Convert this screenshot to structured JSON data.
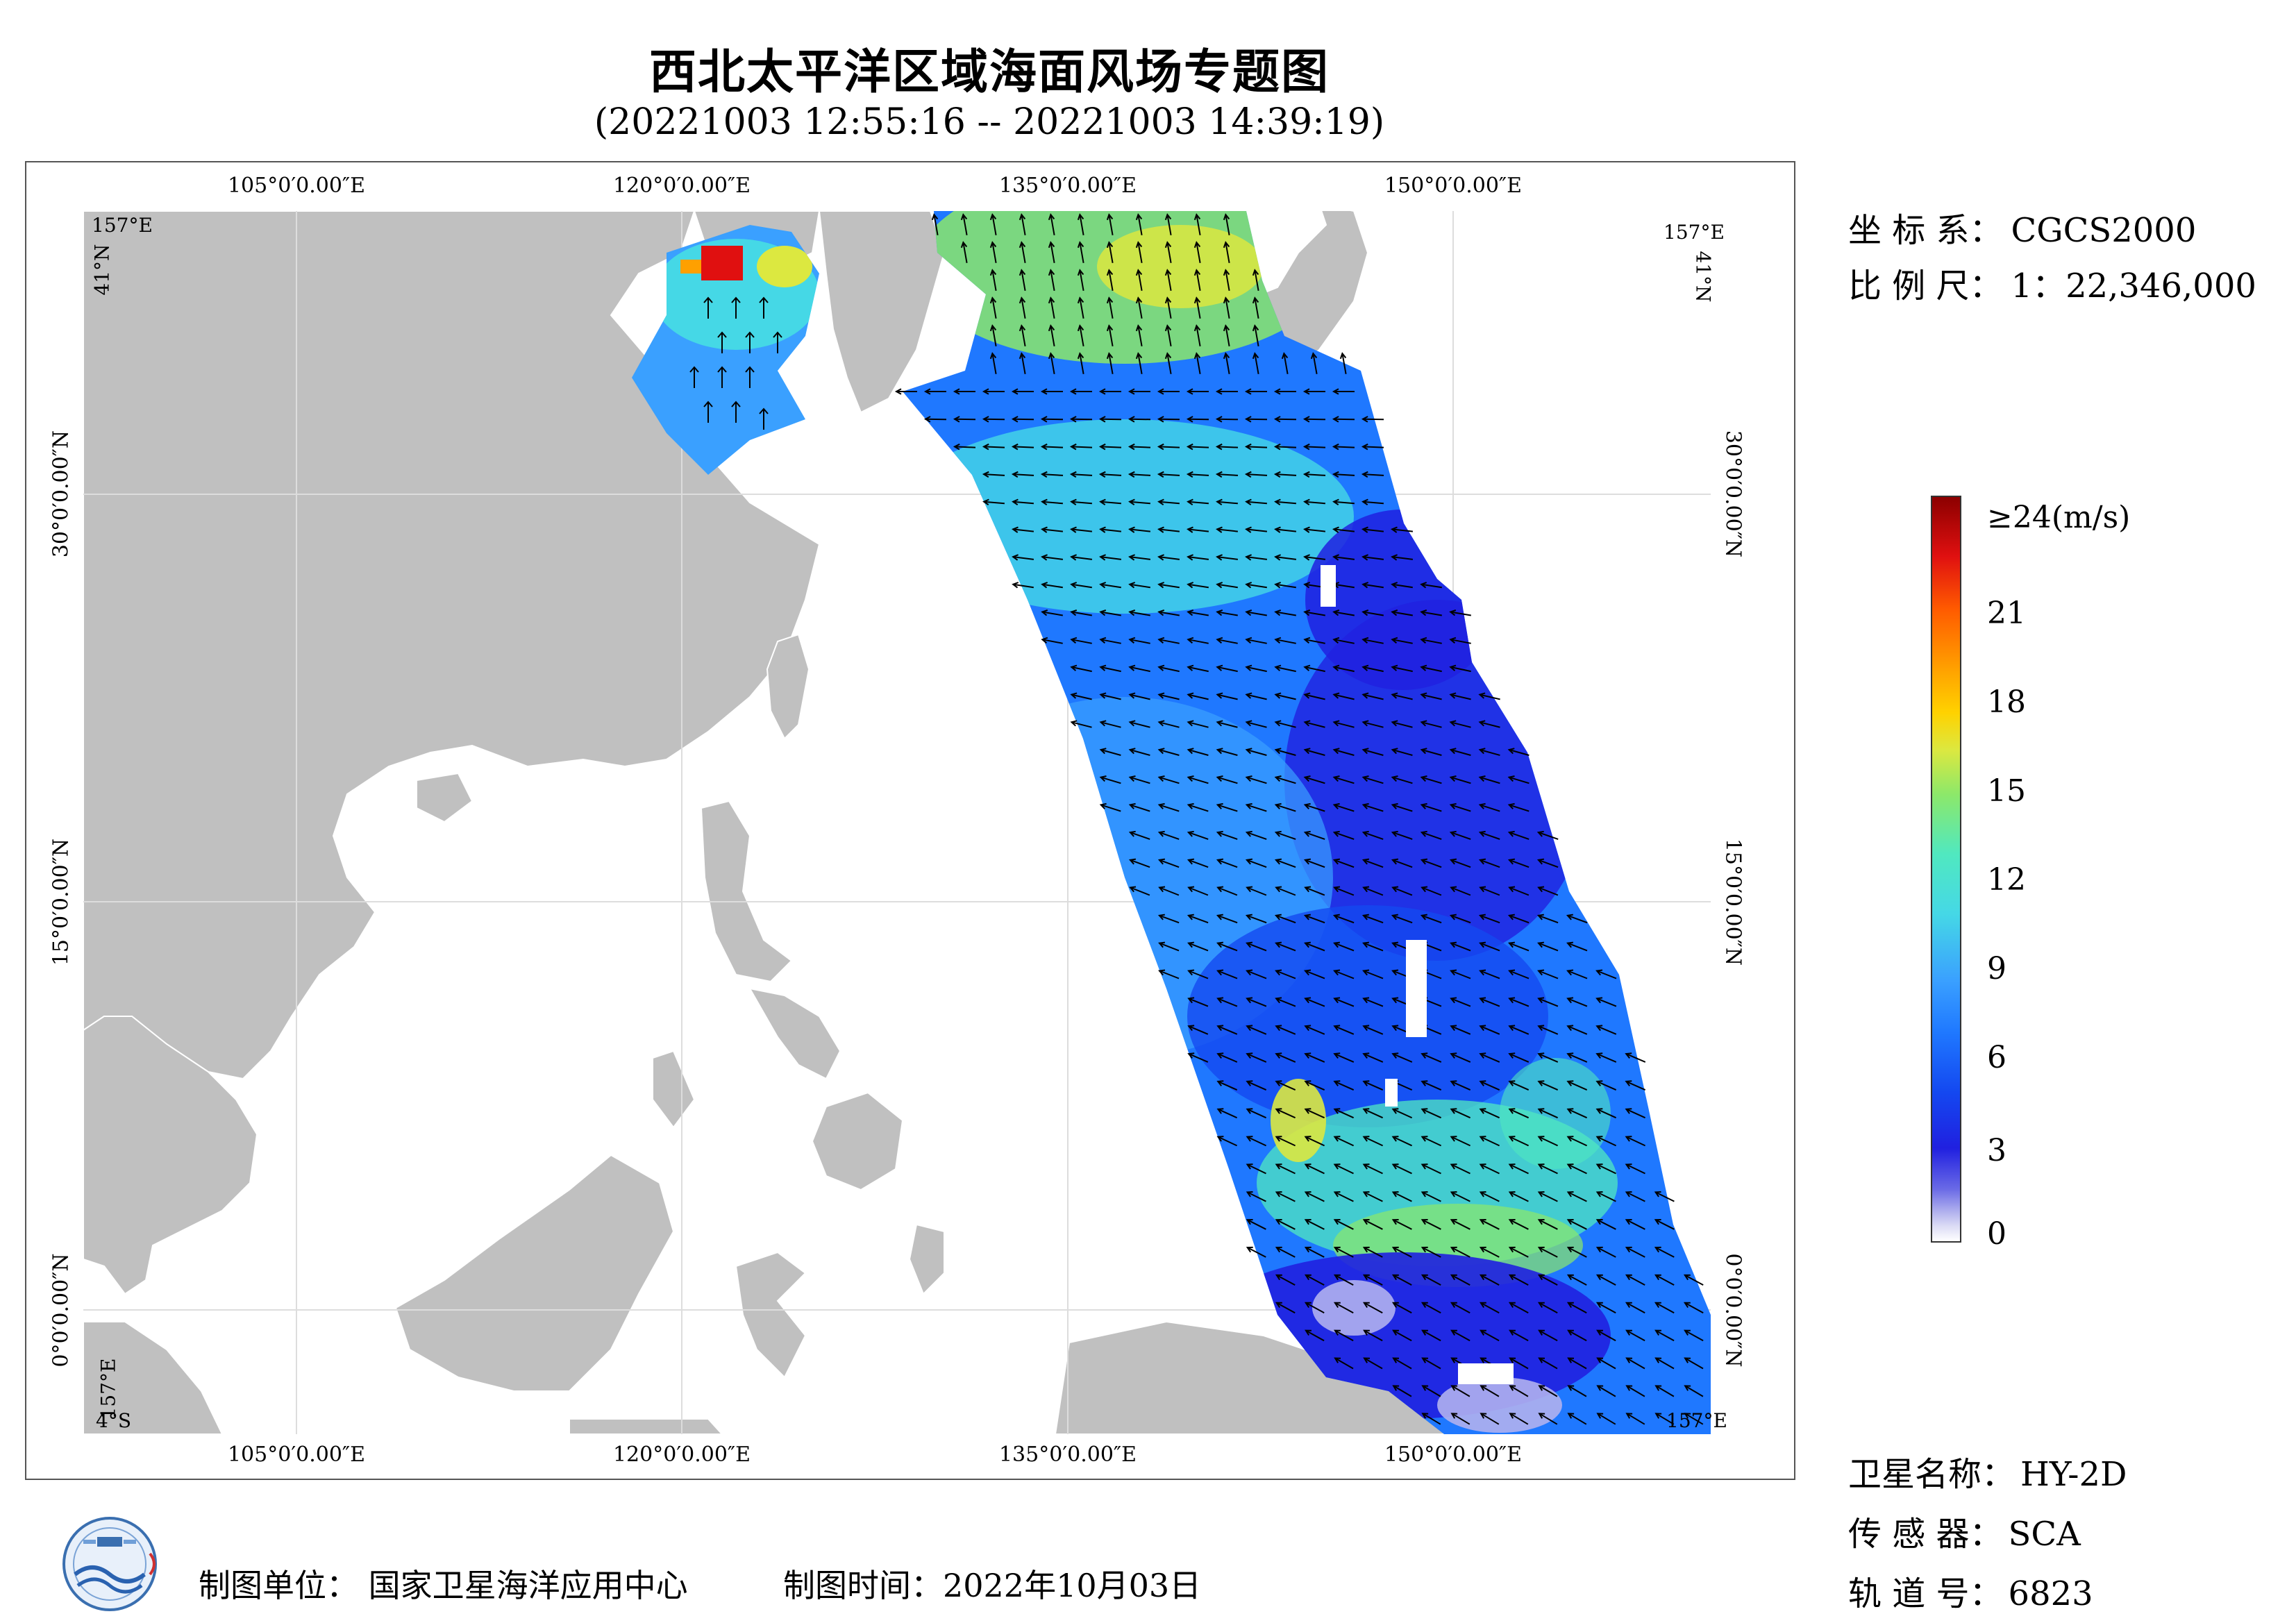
{
  "title": "西北太平洋区域海面风场专题图",
  "time_range": "(20221003 12:55:16 -- 20221003 14:39:19)",
  "map": {
    "lon_labels": [
      "105°0′0.00″E",
      "120°0′0.00″E",
      "135°0′0.00″E",
      "150°0′0.00″E"
    ],
    "lat_labels": [
      "30°0′0.00″N",
      "15°0′0.00″N",
      "0°0′0.00″N"
    ],
    "corners": {
      "top_left_lon": "157°E",
      "top_left_lat": "41°N",
      "top_right_lon": "157°E",
      "top_right_lat": "41°N",
      "bottom_left_lon": "157°E",
      "bottom_left_lat": "4°S",
      "bottom_right_lon": "157°E",
      "bottom_right_lat": "4°S"
    },
    "land_color": "#c0c0c0",
    "ocean_color": "#ffffff",
    "swath_wind_speed_ms": {
      "northern_seas": [
        9,
        12,
        15,
        24
      ],
      "mid_swath": [
        4,
        5,
        6,
        8
      ],
      "southern_swath": [
        2,
        3,
        5,
        13
      ]
    }
  },
  "info": {
    "crs_label": "坐 标 系：",
    "crs_value": "CGCS2000",
    "scale_label": "比 例 尺：",
    "scale_value": "1：22,346,000",
    "satellite_label": "卫星名称：",
    "satellite_value": "HY-2D",
    "sensor_label": "传 感 器：",
    "sensor_value": "SCA",
    "orbit_label": "轨 道 号：",
    "orbit_value": "6823"
  },
  "legend": {
    "ticks": [
      "≥24(m/s)",
      "21",
      "18",
      "15",
      "12",
      "9",
      "6",
      "3",
      "0"
    ],
    "colors": [
      "#8c0000",
      "#e01010",
      "#ff5a00",
      "#ffd200",
      "#8ce86a",
      "#45d8e6",
      "#1f78ff",
      "#2020e0",
      "#ffffff"
    ]
  },
  "footer": {
    "org": "制图单位：  国家卫星海洋应用中心",
    "date": "制图时间：2022年10月03日"
  }
}
